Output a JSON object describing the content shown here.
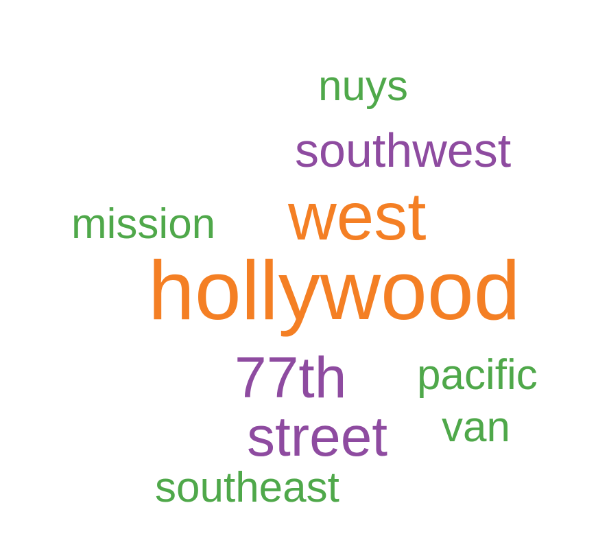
{
  "colors": {
    "orange": "#F47F24",
    "purple": "#8E4BA0",
    "green": "#4FA84A"
  },
  "words": {
    "hollywood": "hollywood",
    "west": "west",
    "southwest": "southwest",
    "seventy_seventh": "77th",
    "street": "street",
    "mission": "mission",
    "nuys": "nuys",
    "pacific": "pacific",
    "van": "van",
    "southeast": "southeast"
  }
}
